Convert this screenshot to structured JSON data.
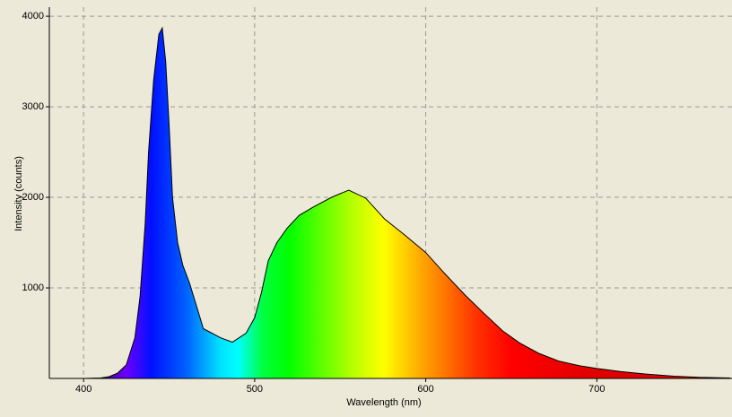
{
  "chart_data": {
    "type": "area",
    "xlabel": "Wavelength (nm)",
    "ylabel": "Intensity (counts)",
    "x": [
      400,
      410,
      415,
      420,
      425,
      430,
      433,
      436,
      438,
      441,
      444,
      446,
      448,
      450,
      452,
      455,
      458,
      462,
      466,
      470,
      475,
      480,
      487,
      495,
      500,
      504,
      508,
      513,
      519,
      526,
      534,
      545,
      555,
      565,
      576,
      588,
      600,
      611,
      623,
      634,
      645,
      655,
      666,
      678,
      690,
      700,
      714,
      728,
      745,
      760,
      778
    ],
    "values": [
      0,
      5,
      20,
      60,
      150,
      450,
      900,
      1700,
      2500,
      3300,
      3800,
      3870,
      3500,
      2800,
      2000,
      1500,
      1250,
      1050,
      800,
      550,
      500,
      450,
      400,
      500,
      670,
      950,
      1300,
      1500,
      1660,
      1800,
      1890,
      2000,
      2080,
      1990,
      1760,
      1580,
      1390,
      1160,
      920,
      720,
      525,
      390,
      277,
      190,
      140,
      110,
      75,
      50,
      25,
      12,
      5
    ],
    "color": "#000000",
    "xlim": [
      380,
      779
    ],
    "ylim": [
      0,
      4100
    ],
    "xticks": [
      400,
      500,
      600,
      700
    ],
    "yticks": [
      1000,
      2000,
      3000,
      4000
    ],
    "grid": true
  }
}
